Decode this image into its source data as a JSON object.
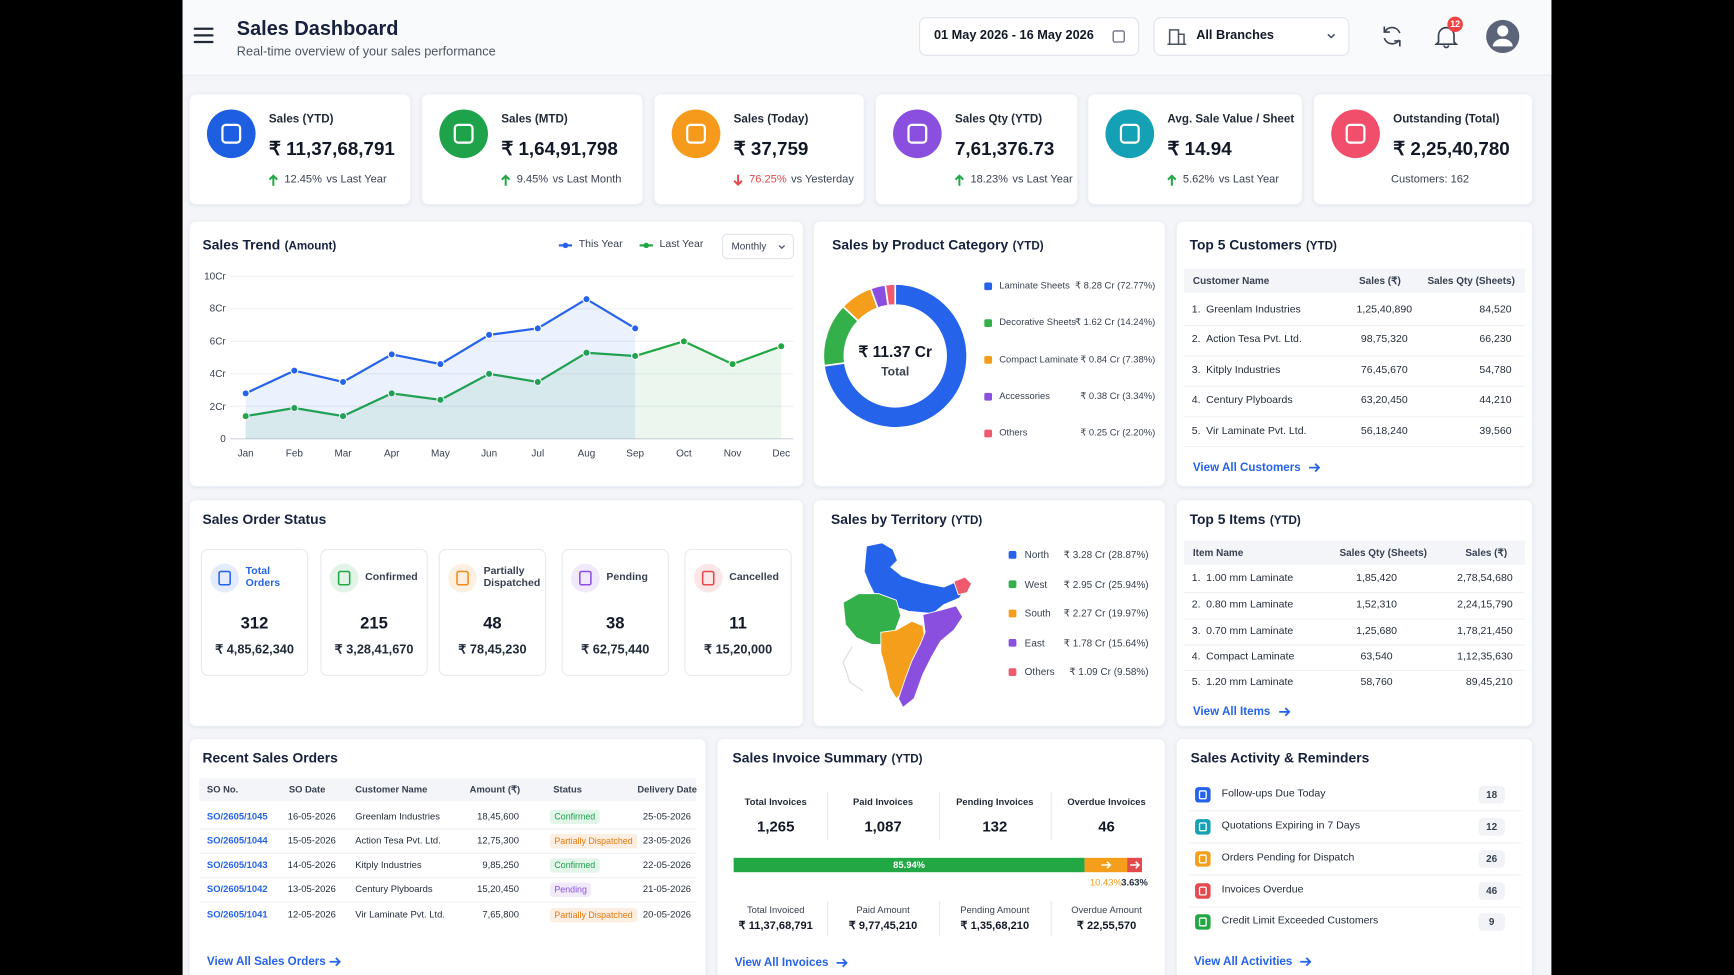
{
  "header": {
    "title": "Sales Dashboard",
    "subtitle": "Real-time overview of your sales performance",
    "date_range": "01 May 2026 - 16 May 2026",
    "branch": "All Branches",
    "notifications": "12"
  },
  "kpis": [
    {
      "label": "Sales (YTD)",
      "value": "₹ 11,37,68,791",
      "change": "12.45%",
      "note": "vs Last Year",
      "trend": "up",
      "color": "#1d5fe0"
    },
    {
      "label": "Sales (MTD)",
      "value": "₹ 1,64,91,798",
      "change": "9.45%",
      "note": "vs Last Month",
      "trend": "up",
      "color": "#1fa34a"
    },
    {
      "label": "Sales (Today)",
      "value": "₹ 37,759",
      "change": "76.25%",
      "note": "vs Yesterday",
      "trend": "down",
      "color": "#f59a1b"
    },
    {
      "label": "Sales Qty (YTD)",
      "value": "7,61,376.73",
      "change": "18.23%",
      "note": "vs Last Year",
      "trend": "up",
      "color": "#8b4fe0"
    },
    {
      "label": "Avg. Sale Value / Sheet",
      "value": "₹ 14.94",
      "change": "5.62%",
      "note": "vs Last Year",
      "trend": "up",
      "color": "#14a0b5"
    },
    {
      "label": "Outstanding (Total)",
      "value": "₹ 2,25,40,780",
      "note": "Customers: 162",
      "color": "#f04e6a"
    }
  ],
  "sales_trend": {
    "type": "line",
    "title": "Sales Trend",
    "title_note": "(Amount)",
    "period": "Monthly",
    "categories": [
      "Jan",
      "Feb",
      "Mar",
      "Apr",
      "May",
      "Jun",
      "Jul",
      "Aug",
      "Sep",
      "Oct",
      "Nov",
      "Dec"
    ],
    "series": [
      {
        "name": "This Year",
        "color": "#2563eb",
        "values": [
          2.8,
          4.2,
          3.5,
          5.2,
          4.6,
          6.4,
          6.8,
          8.6,
          6.8,
          null,
          null,
          null
        ]
      },
      {
        "name": "Last Year",
        "color": "#22a745",
        "values": [
          1.4,
          1.9,
          1.4,
          2.8,
          2.4,
          4.0,
          3.5,
          5.3,
          5.1,
          6.0,
          4.6,
          5.7
        ]
      }
    ],
    "ylim": [
      0,
      10
    ],
    "yticks": [
      0,
      {
        "value": 2,
        "label": "2Cr"
      },
      {
        "value": 4,
        "label": "4Cr"
      },
      {
        "value": 6,
        "label": "6Cr"
      },
      {
        "value": 8,
        "label": "8Cr"
      },
      {
        "value": 10,
        "label": "10Cr"
      }
    ],
    "grid": true
  },
  "product_category": {
    "type": "pie",
    "title": "Sales by Product Category",
    "title_note": "(YTD)",
    "center_value": "₹ 11.37 Cr",
    "center_label": "Total",
    "categories": [
      "Laminate Sheets",
      "Decorative Sheets",
      "Compact Laminate",
      "Accessories",
      "Others"
    ],
    "values": [
      72.77,
      14.24,
      7.38,
      3.34,
      2.2
    ],
    "value_labels": [
      "₹ 8.28 Cr (72.77%)",
      "₹ 1.62 Cr (14.24%)",
      "₹ 0.84 Cr (7.38%)",
      "₹ 0.38 Cr (3.34%)",
      "₹ 0.25 Cr (2.20%)"
    ],
    "colors": [
      "#2563eb",
      "#34b04a",
      "#f59e1b",
      "#8b4fe0",
      "#f05a6e"
    ]
  },
  "top_customers": {
    "title": "Top 5 Customers",
    "title_note": "(YTD)",
    "columns": [
      "Customer Name",
      "Sales (₹)",
      "Sales Qty (Sheets)"
    ],
    "rows": [
      [
        "1.",
        "Greenlam Industries",
        "1,25,40,890",
        "84,520"
      ],
      [
        "2.",
        "Action Tesa Pvt. Ltd.",
        "98,75,320",
        "66,230"
      ],
      [
        "3.",
        "Kitply Industries",
        "76,45,670",
        "54,780"
      ],
      [
        "4.",
        "Century Plyboards",
        "63,20,450",
        "44,210"
      ],
      [
        "5.",
        "Vir Laminate Pvt. Ltd.",
        "56,18,240",
        "39,560"
      ]
    ],
    "link": "View All Customers"
  },
  "order_status": {
    "title": "Sales Order Status",
    "items": [
      {
        "label": "Total Orders",
        "count": "312",
        "amount": "₹ 4,85,62,340",
        "color": "#2563eb"
      },
      {
        "label": "Confirmed",
        "count": "215",
        "amount": "₹ 3,28,41,670",
        "color": "#22a745"
      },
      {
        "label": "Partially Dispatched",
        "count": "48",
        "amount": "₹ 78,45,230",
        "color": "#f08c1b"
      },
      {
        "label": "Pending",
        "count": "38",
        "amount": "₹ 62,75,440",
        "color": "#8b4fe0"
      },
      {
        "label": "Cancelled",
        "count": "11",
        "amount": "₹ 15,20,000",
        "color": "#e5484d"
      }
    ]
  },
  "territory": {
    "title": "Sales by Territory",
    "title_note": "(YTD)",
    "items": [
      {
        "name": "North",
        "value": "₹ 3.28 Cr (28.87%)",
        "color": "#2563eb"
      },
      {
        "name": "West",
        "value": "₹ 2.95 Cr (25.94%)",
        "color": "#34b04a"
      },
      {
        "name": "South",
        "value": "₹ 2.27 Cr (19.97%)",
        "color": "#f59e1b"
      },
      {
        "name": "East",
        "value": "₹ 1.78 Cr (15.64%)",
        "color": "#8b4fe0"
      },
      {
        "name": "Others",
        "value": "₹ 1.09 Cr (9.58%)",
        "color": "#f05a6e"
      }
    ]
  },
  "top_items": {
    "title": "Top 5 Items",
    "title_note": "(YTD)",
    "columns": [
      "Item Name",
      "Sales Qty (Sheets)",
      "Sales (₹)"
    ],
    "rows": [
      [
        "1.",
        "1.00 mm Laminate",
        "1,85,420",
        "2,78,54,680"
      ],
      [
        "2.",
        "0.80 mm Laminate",
        "1,52,310",
        "2,24,15,790"
      ],
      [
        "3.",
        "0.70 mm Laminate",
        "1,25,680",
        "1,78,21,450"
      ],
      [
        "4.",
        "Compact Laminate",
        "63,540",
        "1,12,35,630"
      ],
      [
        "5.",
        "1.20 mm Laminate",
        "58,760",
        "89,45,210"
      ]
    ],
    "link": "View All Items"
  },
  "recent_orders": {
    "title": "Recent Sales Orders",
    "columns": [
      "SO No.",
      "SO Date",
      "Customer Name",
      "Amount (₹)",
      "Status",
      "Delivery Date"
    ],
    "rows": [
      {
        "cells": [
          "SO/2605/1045",
          "16-05-2026",
          "Greenlam Industries",
          "18,45,600",
          "Confirmed",
          "25-05-2026"
        ],
        "status_color": "#16a34a"
      },
      {
        "cells": [
          "SO/2605/1044",
          "15-05-2026",
          "Action Tesa Pvt. Ltd.",
          "12,75,300",
          "Partially Dispatched",
          "23-05-2026"
        ],
        "status_color": "#e8790c"
      },
      {
        "cells": [
          "SO/2605/1043",
          "14-05-2026",
          "Kitply Industries",
          "9,85,250",
          "Confirmed",
          "22-05-2026"
        ],
        "status_color": "#16a34a"
      },
      {
        "cells": [
          "SO/2605/1042",
          "13-05-2026",
          "Century Plyboards",
          "15,20,450",
          "Pending",
          "21-05-2026"
        ],
        "status_color": "#8b4fe0"
      },
      {
        "cells": [
          "SO/2605/1041",
          "12-05-2026",
          "Vir Laminate Pvt. Ltd.",
          "7,65,800",
          "Partially Dispatched",
          "20-05-2026"
        ],
        "status_color": "#e8790c"
      }
    ],
    "link": "View All Sales Orders"
  },
  "invoice_summary": {
    "title": "Sales Invoice Summary",
    "title_note": "(YTD)",
    "counts": [
      {
        "label": "Total Invoices",
        "value": "1,265"
      },
      {
        "label": "Paid Invoices",
        "value": "1,087"
      },
      {
        "label": "Pending Invoices",
        "value": "132"
      },
      {
        "label": "Overdue Invoices",
        "value": "46"
      }
    ],
    "bar": {
      "type": "bar",
      "values": [
        85.94,
        10.43,
        3.63
      ],
      "value_labels": [
        "85.94%",
        "10.43%",
        "3.63%"
      ],
      "colors": [
        "#22a745",
        "#f59e1b",
        "#e5484d"
      ],
      "xlim": [
        0,
        100
      ]
    },
    "amounts": [
      {
        "label": "Total Invoiced",
        "value": "₹ 11,37,68,791"
      },
      {
        "label": "Paid Amount",
        "value": "₹ 9,77,45,210"
      },
      {
        "label": "Pending Amount",
        "value": "₹ 1,35,68,210"
      },
      {
        "label": "Overdue Amount",
        "value": "₹ 22,55,570"
      }
    ],
    "link": "View All Invoices"
  },
  "activity": {
    "title": "Sales Activity & Reminders",
    "items": [
      {
        "label": "Follow-ups Due Today",
        "count": "18",
        "color": "#2563eb"
      },
      {
        "label": "Quotations Expiring in 7 Days",
        "count": "12",
        "color": "#14a0b5"
      },
      {
        "label": "Orders Pending for Dispatch",
        "count": "26",
        "color": "#f59e1b"
      },
      {
        "label": "Invoices Overdue",
        "count": "46",
        "color": "#e5484d"
      },
      {
        "label": "Credit Limit Exceeded Customers",
        "count": "9",
        "color": "#22a745"
      }
    ],
    "link": "View All Activities"
  }
}
